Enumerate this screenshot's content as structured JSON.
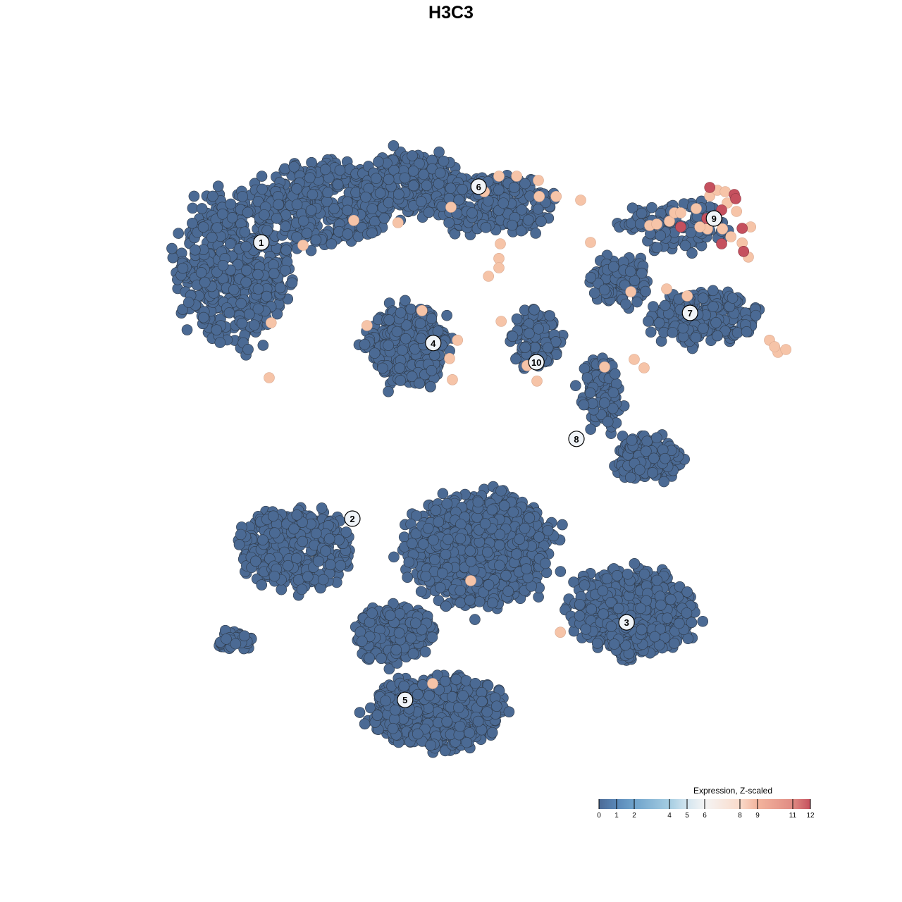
{
  "chart_data": {
    "type": "scatter",
    "title": "H3C3",
    "xlabel": "",
    "ylabel": "",
    "grid": false,
    "colors": {
      "low": "#4b6a94",
      "mid_high": "#f6c4a8",
      "high": "#c5505e",
      "stroke": "#2f3a48"
    },
    "cluster_labels": [
      {
        "label": "1",
        "x": -6.73,
        "y": 7.4
      },
      {
        "label": "6",
        "x": 0.98,
        "y": 9.38
      },
      {
        "label": "9",
        "x": 9.33,
        "y": 8.25
      },
      {
        "label": "4",
        "x": -0.63,
        "y": 3.83
      },
      {
        "label": "7",
        "x": 8.48,
        "y": 4.9
      },
      {
        "label": "10",
        "x": 3.03,
        "y": 3.15
      },
      {
        "label": "8",
        "x": 4.45,
        "y": 0.43
      },
      {
        "label": "2",
        "x": -3.5,
        "y": -2.4
      },
      {
        "label": "3",
        "x": 6.23,
        "y": -6.08
      },
      {
        "label": "5",
        "x": -1.63,
        "y": -8.83
      }
    ],
    "background_cells": {
      "value": 0,
      "regions": [
        {
          "cx": -7.75,
          "cy": 6.5,
          "sx": 2.75,
          "sy": 3.75,
          "n": 500
        },
        {
          "cx": -4.5,
          "cy": 8.75,
          "sx": 3.25,
          "sy": 2,
          "n": 450
        },
        {
          "cx": -1.5,
          "cy": 9.5,
          "sx": 2.5,
          "sy": 1.5,
          "n": 300
        },
        {
          "cx": 1.5,
          "cy": 8.75,
          "sx": 3,
          "sy": 1.5,
          "n": 250
        },
        {
          "cx": -1.5,
          "cy": 3.75,
          "sx": 2,
          "sy": 2,
          "n": 350
        },
        {
          "cx": 3,
          "cy": 4,
          "sx": 1.25,
          "sy": 1.5,
          "n": 100
        },
        {
          "cx": 6,
          "cy": 6,
          "sx": 1.5,
          "sy": 1.25,
          "n": 120
        },
        {
          "cx": 9,
          "cy": 4.75,
          "sx": 2.75,
          "sy": 1.25,
          "n": 220
        },
        {
          "cx": 8,
          "cy": 8,
          "sx": 2.5,
          "sy": 1.25,
          "n": 120
        },
        {
          "cx": 5.25,
          "cy": 2,
          "sx": 1,
          "sy": 1.75,
          "n": 100
        },
        {
          "cx": 7,
          "cy": -0.25,
          "sx": 1.6,
          "sy": 1.1,
          "n": 150
        },
        {
          "cx": -5.5,
          "cy": -3.5,
          "sx": 2.75,
          "sy": 2,
          "n": 350
        },
        {
          "cx": 1,
          "cy": -3.5,
          "sx": 3.5,
          "sy": 2.75,
          "n": 900
        },
        {
          "cx": 6.5,
          "cy": -5.75,
          "sx": 3,
          "sy": 2.25,
          "n": 500
        },
        {
          "cx": -0.5,
          "cy": -9.25,
          "sx": 3.25,
          "sy": 1.75,
          "n": 600
        },
        {
          "cx": -2,
          "cy": -6.5,
          "sx": 2,
          "sy": 1.5,
          "n": 250
        },
        {
          "cx": -7.75,
          "cy": -6.75,
          "sx": 1,
          "sy": 0.6,
          "n": 40
        }
      ]
    },
    "expressed_cells": [
      {
        "x": -3.45,
        "y": 8.18,
        "v": 8
      },
      {
        "x": -5.25,
        "y": 7.3,
        "v": 8
      },
      {
        "x": -1.88,
        "y": 8.1,
        "v": 8
      },
      {
        "x": -6.38,
        "y": 4.55,
        "v": 8
      },
      {
        "x": -6.45,
        "y": 2.6,
        "v": 8
      },
      {
        "x": -2.98,
        "y": 4.45,
        "v": 8
      },
      {
        "x": -1.03,
        "y": 4.98,
        "v": 8
      },
      {
        "x": 0.23,
        "y": 3.93,
        "v": 8
      },
      {
        "x": -0.05,
        "y": 3.28,
        "v": 8
      },
      {
        "x": 0.05,
        "y": 2.53,
        "v": 8
      },
      {
        "x": 0,
        "y": 8.65,
        "v": 8
      },
      {
        "x": 1.7,
        "y": 9.75,
        "v": 8
      },
      {
        "x": 2.33,
        "y": 9.75,
        "v": 8
      },
      {
        "x": 3.1,
        "y": 9.6,
        "v": 8
      },
      {
        "x": 1.18,
        "y": 9.2,
        "v": 8
      },
      {
        "x": 3.13,
        "y": 9.03,
        "v": 8
      },
      {
        "x": 3.73,
        "y": 9.03,
        "v": 8
      },
      {
        "x": 4.6,
        "y": 8.9,
        "v": 8
      },
      {
        "x": 1.75,
        "y": 7.35,
        "v": 8
      },
      {
        "x": 1.7,
        "y": 6.83,
        "v": 8
      },
      {
        "x": 1.7,
        "y": 6.5,
        "v": 8
      },
      {
        "x": 1.33,
        "y": 6.2,
        "v": 8
      },
      {
        "x": 1.78,
        "y": 4.6,
        "v": 8
      },
      {
        "x": 2.7,
        "y": 3.03,
        "v": 8
      },
      {
        "x": 3.05,
        "y": 2.48,
        "v": 8
      },
      {
        "x": 4.95,
        "y": 7.4,
        "v": 8
      },
      {
        "x": 6.38,
        "y": 5.65,
        "v": 8
      },
      {
        "x": 7.65,
        "y": 5.75,
        "v": 8
      },
      {
        "x": 8.38,
        "y": 5.5,
        "v": 8
      },
      {
        "x": 6.5,
        "y": 3.25,
        "v": 8
      },
      {
        "x": 6.85,
        "y": 2.95,
        "v": 8
      },
      {
        "x": 5.45,
        "y": 2.98,
        "v": 8
      },
      {
        "x": 11.3,
        "y": 3.93,
        "v": 8
      },
      {
        "x": 11.6,
        "y": 3.5,
        "v": 8
      },
      {
        "x": 11.88,
        "y": 3.6,
        "v": 8
      },
      {
        "x": 11.48,
        "y": 3.7,
        "v": 8
      },
      {
        "x": 0.7,
        "y": -4.6,
        "v": 8
      },
      {
        "x": 3.88,
        "y": -6.43,
        "v": 8
      },
      {
        "x": -0.65,
        "y": -8.25,
        "v": 8
      },
      {
        "x": 7.05,
        "y": 8,
        "v": 8
      },
      {
        "x": 7.3,
        "y": 8.05,
        "v": 8
      },
      {
        "x": 7.75,
        "y": 8.15,
        "v": 8
      },
      {
        "x": 7.93,
        "y": 8.45,
        "v": 8
      },
      {
        "x": 8.15,
        "y": 8.45,
        "v": 8
      },
      {
        "x": 8.7,
        "y": 8.6,
        "v": 8
      },
      {
        "x": 9.18,
        "y": 9.05,
        "v": 8
      },
      {
        "x": 9.45,
        "y": 9.25,
        "v": 8
      },
      {
        "x": 9.73,
        "y": 9.2,
        "v": 8
      },
      {
        "x": 10.13,
        "y": 8.5,
        "v": 8
      },
      {
        "x": 9.33,
        "y": 8.2,
        "v": 8
      },
      {
        "x": 9.1,
        "y": 7.88,
        "v": 8
      },
      {
        "x": 9.63,
        "y": 7.88,
        "v": 8
      },
      {
        "x": 9.93,
        "y": 7.6,
        "v": 8
      },
      {
        "x": 10.33,
        "y": 7.38,
        "v": 8
      },
      {
        "x": 10.55,
        "y": 6.88,
        "v": 8
      },
      {
        "x": 10.63,
        "y": 7.95,
        "v": 8
      },
      {
        "x": 9.8,
        "y": 8.8,
        "v": 8
      },
      {
        "x": 8.83,
        "y": 7.95,
        "v": 8
      },
      {
        "x": 9.18,
        "y": 9.35,
        "v": 12
      },
      {
        "x": 10.05,
        "y": 9.1,
        "v": 12
      },
      {
        "x": 10.1,
        "y": 8.95,
        "v": 12
      },
      {
        "x": 8.15,
        "y": 7.95,
        "v": 12
      },
      {
        "x": 9.6,
        "y": 8.55,
        "v": 12
      },
      {
        "x": 10.33,
        "y": 7.9,
        "v": 12
      },
      {
        "x": 9.6,
        "y": 7.35,
        "v": 12
      },
      {
        "x": 10.38,
        "y": 7.08,
        "v": 12
      },
      {
        "x": 9.08,
        "y": 8.25,
        "v": 12
      }
    ],
    "legend": {
      "title": "Expression, Z-scaled",
      "position": "bottom-right",
      "range": [
        0,
        12
      ],
      "ticks": [
        0,
        1,
        2,
        4,
        5,
        6,
        8,
        9,
        11,
        12
      ],
      "tick_labels": [
        "0",
        "1",
        "2",
        "4",
        "5",
        "6",
        "8",
        "9",
        "11",
        "12"
      ],
      "stops": [
        {
          "v": 0,
          "c": "#4b6a96"
        },
        {
          "v": 1,
          "c": "#5a88b8"
        },
        {
          "v": 2,
          "c": "#6fa3cb"
        },
        {
          "v": 4,
          "c": "#a5cde2"
        },
        {
          "v": 5,
          "c": "#d3e5ef"
        },
        {
          "v": 6,
          "c": "#f4f4f4"
        },
        {
          "v": 8,
          "c": "#fadbcb"
        },
        {
          "v": 9,
          "c": "#f3b49d"
        },
        {
          "v": 11,
          "c": "#e08b83"
        },
        {
          "v": 12,
          "c": "#c5505e"
        }
      ]
    }
  }
}
